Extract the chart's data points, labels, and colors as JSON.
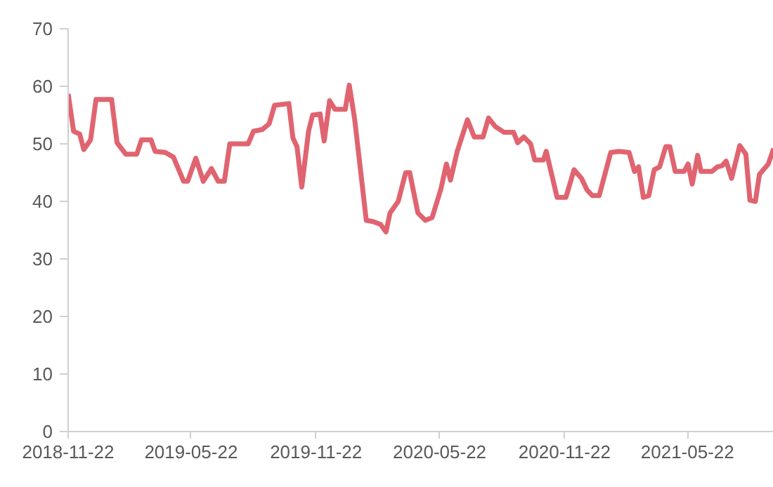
{
  "chart_data": {
    "type": "line",
    "grid": false,
    "marker": "none",
    "line_style": "solid",
    "xlim": [
      "2018-11-22",
      "2021-09-26"
    ],
    "xticks": [
      "2018-11-22",
      "2019-05-22",
      "2019-11-22",
      "2020-05-22",
      "2020-11-22",
      "2021-05-22"
    ],
    "ylim": [
      0,
      70
    ],
    "yticks": [
      0,
      10,
      20,
      30,
      40,
      50,
      60,
      70
    ],
    "x": [
      "2018-11-22",
      "2018-11-30",
      "2018-12-09",
      "2018-12-15",
      "2018-12-25",
      "2019-01-02",
      "2019-01-25",
      "2019-02-02",
      "2019-02-15",
      "2019-03-03",
      "2019-03-10",
      "2019-03-24",
      "2019-03-30",
      "2019-04-14",
      "2019-04-26",
      "2019-05-11",
      "2019-05-17",
      "2019-05-29",
      "2019-06-09",
      "2019-06-21",
      "2019-07-01",
      "2019-07-10",
      "2019-07-18",
      "2019-08-14",
      "2019-08-22",
      "2019-09-04",
      "2019-09-14",
      "2019-09-22",
      "2019-10-13",
      "2019-10-19",
      "2019-10-25",
      "2019-11-01",
      "2019-11-11",
      "2019-11-17",
      "2019-11-28",
      "2019-12-04",
      "2019-12-12",
      "2019-12-20",
      "2020-01-04",
      "2020-01-10",
      "2020-01-18",
      "2020-02-04",
      "2020-02-14",
      "2020-02-25",
      "2020-03-04",
      "2020-03-10",
      "2020-03-22",
      "2020-04-02",
      "2020-04-08",
      "2020-04-20",
      "2020-05-01",
      "2020-05-11",
      "2020-05-24",
      "2020-06-01",
      "2020-06-07",
      "2020-06-17",
      "2020-07-02",
      "2020-07-12",
      "2020-07-25",
      "2020-08-02",
      "2020-08-12",
      "2020-08-25",
      "2020-09-08",
      "2020-09-14",
      "2020-09-23",
      "2020-10-03",
      "2020-10-09",
      "2020-10-22",
      "2020-10-26",
      "2020-11-11",
      "2020-11-24",
      "2020-12-06",
      "2020-12-17",
      "2020-12-25",
      "2021-01-02",
      "2021-01-12",
      "2021-01-29",
      "2021-02-10",
      "2021-02-25",
      "2021-03-05",
      "2021-03-11",
      "2021-03-18",
      "2021-03-26",
      "2021-04-03",
      "2021-04-11",
      "2021-04-20",
      "2021-04-26",
      "2021-05-04",
      "2021-05-17",
      "2021-05-23",
      "2021-05-29",
      "2021-06-06",
      "2021-06-11",
      "2021-06-27",
      "2021-07-05",
      "2021-07-12",
      "2021-07-18",
      "2021-07-26",
      "2021-08-07",
      "2021-08-16",
      "2021-08-22",
      "2021-08-30",
      "2021-09-05",
      "2021-09-18",
      "2021-09-26"
    ],
    "series": [
      {
        "color": "#e06470",
        "values": [
          58.7,
          52.2,
          51.7,
          49,
          50.7,
          57.7,
          57.7,
          50.2,
          48.2,
          48.2,
          50.7,
          50.7,
          48.7,
          48.5,
          47.7,
          43.5,
          43.5,
          47.5,
          43.5,
          45.7,
          43.5,
          43.5,
          50,
          50,
          52.2,
          52.5,
          53.5,
          56.7,
          57,
          51,
          49.5,
          42.5,
          52.2,
          55,
          55.2,
          50.5,
          57.5,
          56,
          56,
          60.2,
          54.2,
          36.7,
          36.5,
          36,
          34.7,
          38,
          40,
          45,
          45,
          38,
          36.7,
          37.2,
          42.2,
          46.5,
          43.7,
          48.7,
          54.2,
          51.2,
          51.2,
          54.5,
          53,
          52,
          52,
          50.2,
          51.2,
          50,
          47.2,
          47.2,
          48.7,
          40.7,
          40.7,
          45.5,
          44,
          42,
          41,
          41,
          48.5,
          48.7,
          48.5,
          45.2,
          46,
          40.7,
          41,
          45.5,
          46,
          49.5,
          49.5,
          45.2,
          45.2,
          46.5,
          43,
          48,
          45.2,
          45.2,
          46,
          46.2,
          47,
          44,
          49.7,
          48.2,
          40.2,
          40,
          44.7,
          46.5,
          49.2
        ]
      }
    ]
  }
}
